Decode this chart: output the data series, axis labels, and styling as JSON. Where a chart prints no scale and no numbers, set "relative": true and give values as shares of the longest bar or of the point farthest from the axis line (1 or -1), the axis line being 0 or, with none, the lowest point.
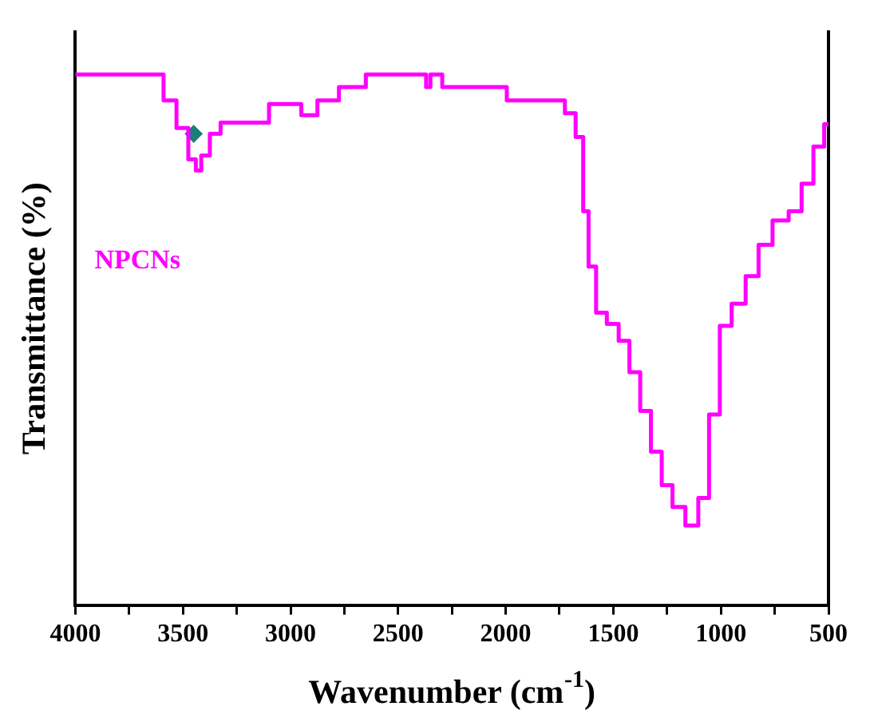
{
  "chart_data": {
    "type": "step",
    "xlabel": "Wavenumber (cm$^{-1}$)",
    "ylabel": "Transmittance (%)",
    "relative": true,
    "xlim": [
      4000,
      500
    ],
    "xticks": [
      4000,
      {
        "value": 3750,
        "label": null
      },
      3500,
      {
        "value": 3250,
        "label": null
      },
      3000,
      {
        "value": 2750,
        "label": null
      },
      2500,
      {
        "value": 2250,
        "label": null
      },
      2000,
      {
        "value": 1750,
        "label": null
      },
      1500,
      {
        "value": 1250,
        "label": null
      },
      1000,
      {
        "value": 750,
        "label": null
      },
      500
    ],
    "grid": false,
    "legend": false,
    "marker": "none",
    "line_style": "solid",
    "series": [
      {
        "name": "NPCNs",
        "color": "#ff00ff",
        "x": [
          4000,
          3620,
          3560,
          3500,
          3450,
          3430,
          3400,
          3350,
          3300,
          3200,
          3000,
          2900,
          2850,
          2700,
          2600,
          2380,
          2360,
          2340,
          2250,
          2000,
          1990,
          1750,
          1700,
          1650,
          1630,
          1600,
          1560,
          1500,
          1450,
          1400,
          1350,
          1300,
          1250,
          1200,
          1130,
          1080,
          1030,
          980,
          920,
          850,
          800,
          720,
          650,
          600,
          540,
          500
        ],
        "values": [
          1.0,
          1.0,
          0.951,
          0.899,
          0.84,
          0.819,
          0.847,
          0.888,
          0.909,
          0.909,
          0.944,
          0.923,
          0.951,
          0.976,
          1.0,
          1.0,
          0.976,
          1.0,
          0.976,
          0.976,
          0.951,
          0.951,
          0.927,
          0.882,
          0.742,
          0.638,
          0.551,
          0.53,
          0.498,
          0.439,
          0.366,
          0.289,
          0.226,
          0.185,
          0.15,
          0.202,
          0.359,
          0.526,
          0.568,
          0.62,
          0.679,
          0.725,
          0.742,
          0.794,
          0.864,
          0.906
        ]
      },
      {
        "type": "scatter",
        "marker": "diamond",
        "color": "#1a7f7a",
        "x": [
          3450
        ],
        "values": [
          0.888
        ]
      }
    ]
  }
}
